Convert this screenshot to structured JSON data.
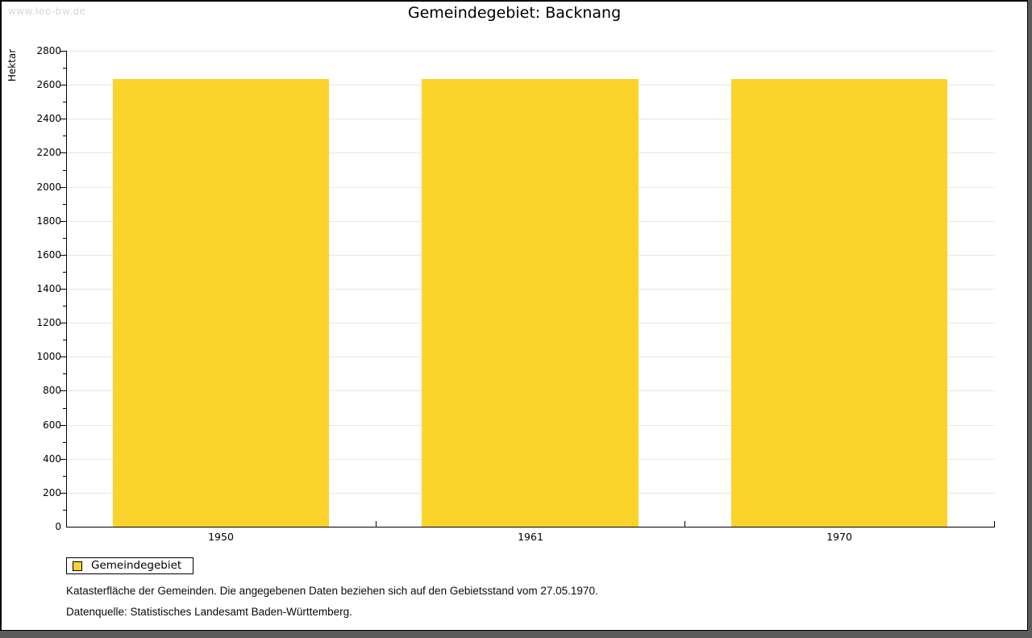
{
  "watermark": "www.leo-bw.de",
  "chart_data": {
    "type": "bar",
    "title": "Gemeindegebiet: Backnang",
    "ylabel": "Hektar",
    "xlabel": "",
    "categories": [
      "1950",
      "1961",
      "1970"
    ],
    "series": [
      {
        "name": "Gemeindegebiet",
        "color": "#fcd32b",
        "values": [
          2633,
          2633,
          2633
        ]
      }
    ],
    "ylim": [
      0,
      2800
    ],
    "ytick_major": 200,
    "ytick_minor": 100,
    "grid": "horizontal-major",
    "legend_position": "bottom-left"
  },
  "footer": {
    "line1": "Katasterfläche der Gemeinden. Die angegebenen Daten beziehen sich auf den Gebietsstand vom 27.05.1970.",
    "line2": "Datenquelle: Statistisches Landesamt Baden-Württemberg."
  },
  "colors": {
    "bar": "#fcd32b",
    "gridline": "#e6e6e6",
    "axis": "#000000",
    "watermark": "#d8d8d8",
    "frame": "#5a5a5a",
    "background": "#ffffff",
    "text": "#000000"
  }
}
